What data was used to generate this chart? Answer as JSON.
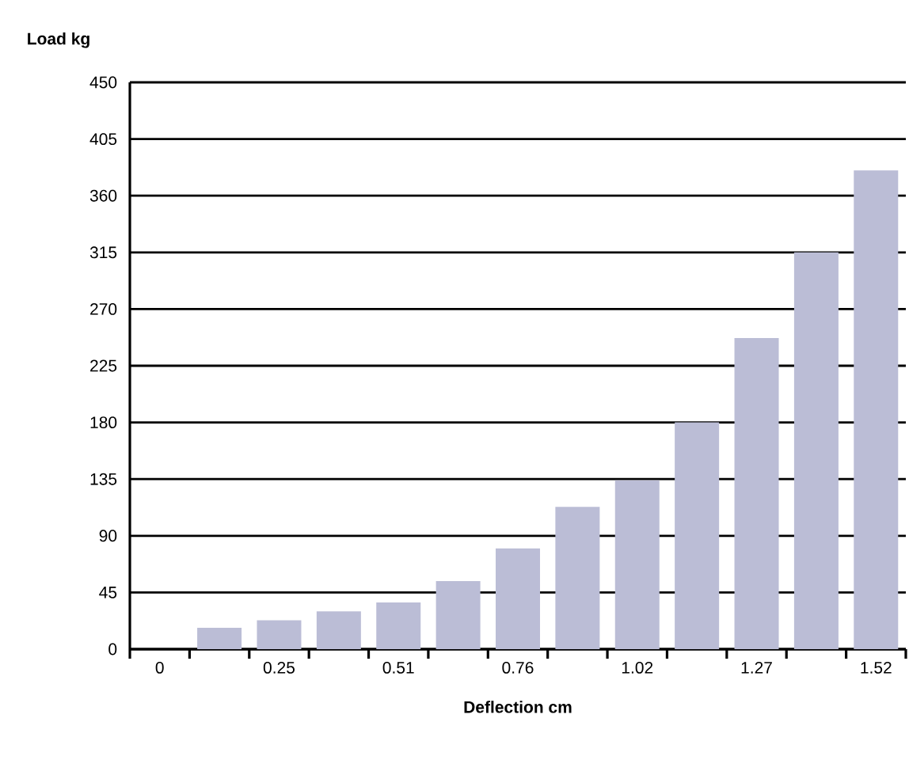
{
  "chart_data": {
    "type": "bar",
    "xlabel": "Deflection cm",
    "ylabel": "Load kg",
    "categories": [
      "0",
      null,
      "0.25",
      null,
      "0.51",
      null,
      "0.76",
      null,
      "1.02",
      null,
      "1.27",
      null,
      "1.52"
    ],
    "values": [
      null,
      17,
      23,
      30,
      37,
      54,
      80,
      113,
      134,
      180,
      247,
      315,
      380
    ],
    "color": "#bbbdd6",
    "ylim": [
      0,
      450
    ],
    "yticks": [
      0,
      45,
      90,
      135,
      180,
      225,
      270,
      315,
      360,
      405,
      450
    ],
    "grid": "y"
  }
}
